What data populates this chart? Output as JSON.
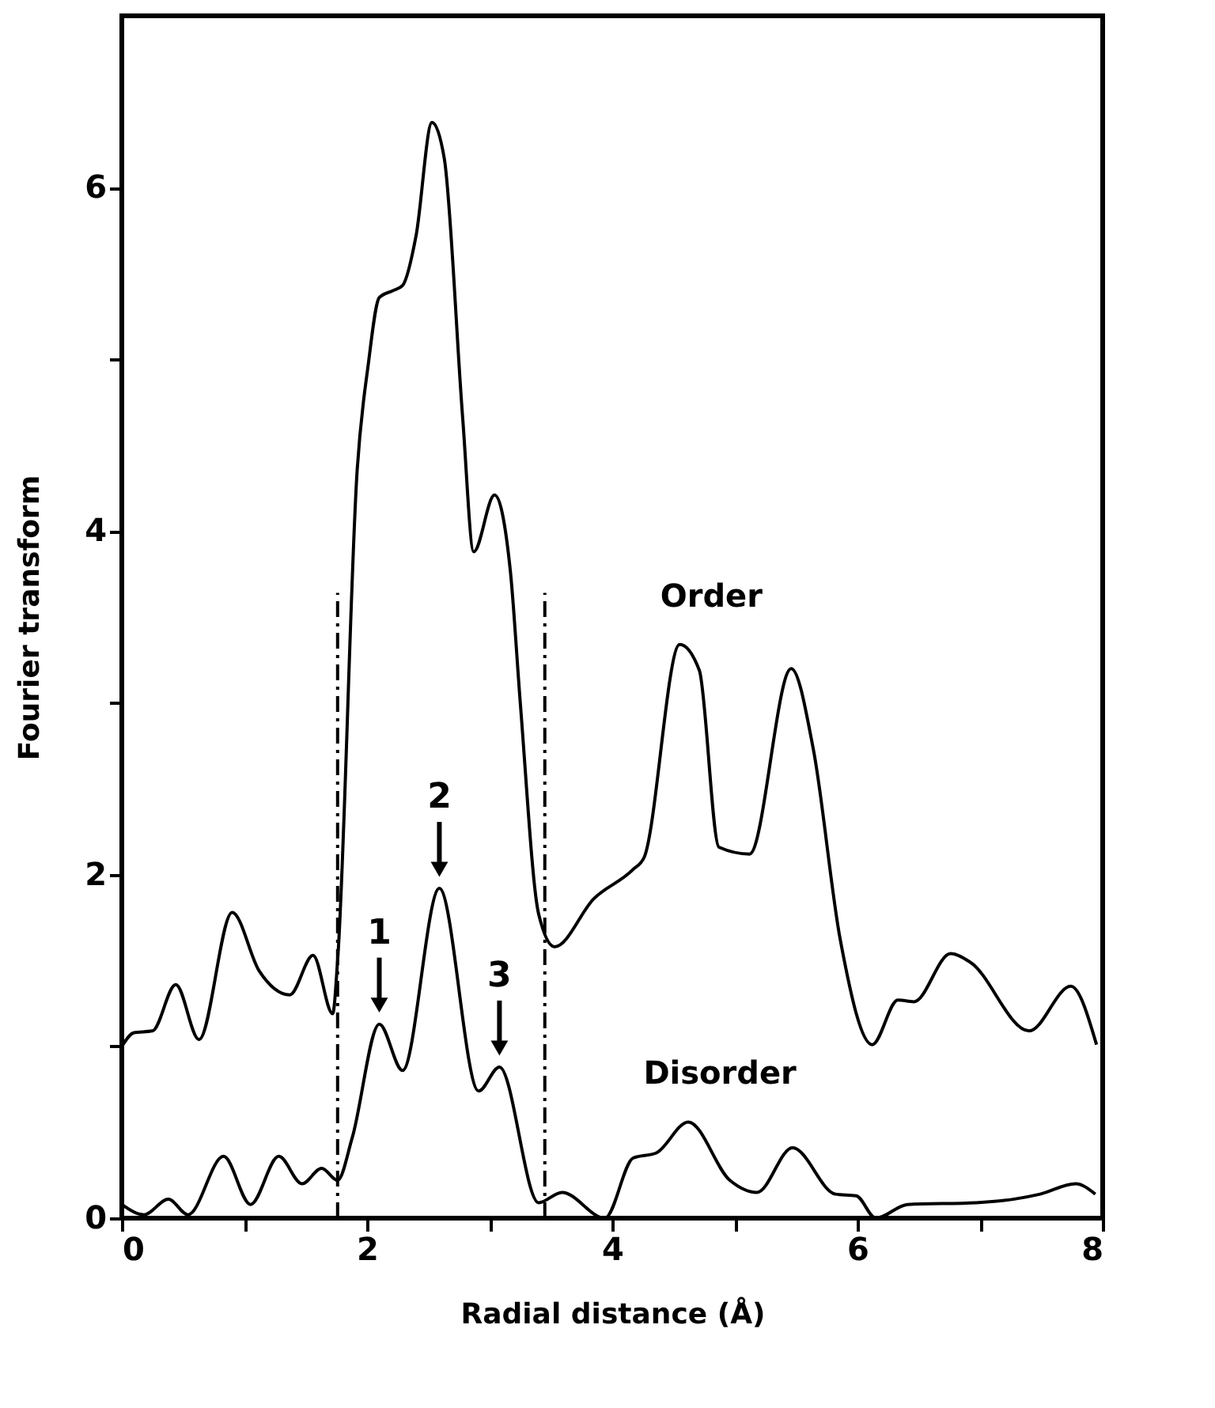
{
  "chart_data": {
    "type": "line",
    "xlabel": "Radial distance (Å)",
    "ylabel": "Fourier transform",
    "xlim": [
      0,
      8
    ],
    "ylim": [
      0,
      7
    ],
    "xticks": [
      0,
      {
        "value": 1,
        "label": null
      },
      2,
      {
        "value": 3,
        "label": null
      },
      4,
      {
        "value": 5,
        "label": null
      },
      6,
      {
        "value": 7,
        "label": null
      },
      8
    ],
    "yticks": [
      0,
      {
        "value": 1,
        "label": null
      },
      2,
      {
        "value": 3,
        "label": null
      },
      4,
      {
        "value": 5,
        "label": null
      },
      6
    ],
    "grid": false,
    "line_style": "solid",
    "marker": "none",
    "series": [
      {
        "name": "Order",
        "color": "#000000",
        "x": [
          0,
          0.1,
          0.25,
          0.44,
          0.63,
          0.9,
          1.12,
          1.37,
          1.56,
          1.72,
          1.76,
          1.92,
          2.01,
          2.1,
          2.21,
          2.29,
          2.4,
          2.53,
          2.63,
          2.78,
          2.87,
          3.04,
          3.17,
          3.25,
          3.4,
          3.53,
          3.85,
          4.17,
          4.26,
          4.55,
          4.71,
          4.87,
          5.12,
          5.46,
          5.64,
          5.86,
          6.12,
          6.33,
          6.46,
          6.76,
          6.92,
          7.4,
          7.74,
          7.95
        ],
        "values": [
          1.0,
          1.08,
          1.09,
          1.36,
          1.04,
          1.78,
          1.44,
          1.3,
          1.53,
          1.19,
          1.5,
          4.36,
          4.97,
          5.36,
          5.4,
          5.43,
          5.72,
          6.38,
          6.17,
          4.66,
          3.88,
          4.21,
          3.76,
          3.0,
          1.77,
          1.58,
          1.86,
          2.03,
          2.1,
          3.34,
          3.19,
          2.16,
          2.12,
          3.2,
          2.73,
          1.62,
          1.01,
          1.27,
          1.26,
          1.54,
          1.49,
          1.09,
          1.35,
          1.01
        ]
      },
      {
        "name": "Disorder",
        "color": "#000000",
        "x": [
          0,
          0.18,
          0.38,
          0.54,
          0.83,
          1.05,
          1.28,
          1.47,
          1.63,
          1.76,
          1.88,
          2.1,
          2.29,
          2.59,
          2.91,
          3.08,
          3.4,
          3.59,
          3.94,
          4.17,
          4.36,
          4.62,
          4.96,
          5.18,
          5.47,
          5.82,
          5.99,
          6.15,
          6.41,
          6.97,
          7.27,
          7.49,
          7.78,
          7.94
        ],
        "values": [
          0.08,
          0.02,
          0.11,
          0.02,
          0.36,
          0.08,
          0.36,
          0.2,
          0.29,
          0.22,
          0.47,
          1.13,
          0.86,
          1.92,
          0.74,
          0.88,
          0.09,
          0.15,
          0.0,
          0.35,
          0.38,
          0.56,
          0.22,
          0.15,
          0.41,
          0.14,
          0.13,
          0.0,
          0.08,
          0.09,
          0.11,
          0.14,
          0.2,
          0.14
        ]
      },
      {
        "color": "#000000",
        "line_style": "dashed",
        "x": [
          1.76,
          1.76
        ],
        "values": [
          0,
          3.64
        ]
      },
      {
        "color": "#000000",
        "line_style": "dashed",
        "x": [
          3.45,
          3.45
        ],
        "values": [
          0,
          3.64
        ]
      }
    ],
    "annotations": [
      {
        "text": "1",
        "x": 2.1,
        "y": 1.13
      },
      {
        "text": "2",
        "x": 2.59,
        "y": 1.92
      },
      {
        "text": "3",
        "x": 3.08,
        "y": 0.88
      }
    ]
  }
}
